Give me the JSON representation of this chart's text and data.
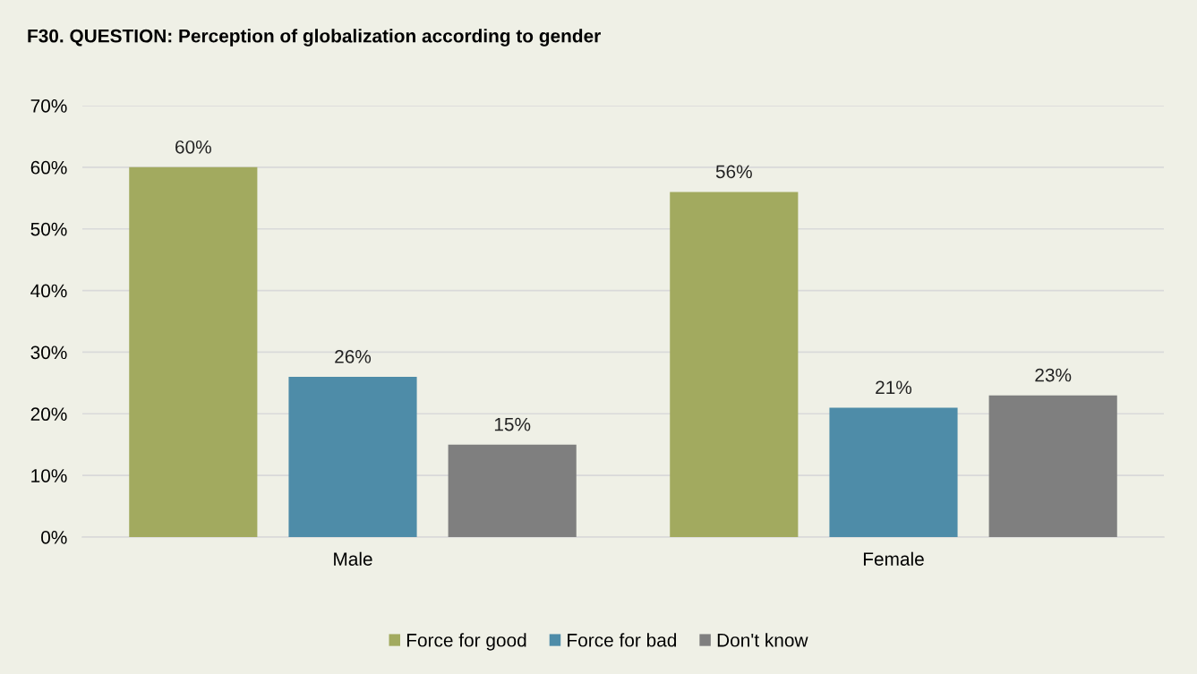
{
  "chart_data": {
    "type": "bar",
    "title": "F30. QUESTION: Perception of globalization according to gender",
    "categories": [
      "Male",
      "Female"
    ],
    "series": [
      {
        "name": "Force for good",
        "color": "#a2aa5f",
        "values": [
          60,
          56
        ],
        "value_labels": [
          "60%",
          "56%"
        ]
      },
      {
        "name": "Force for bad",
        "color": "#4e8ca8",
        "values": [
          26,
          21
        ],
        "value_labels": [
          "26%",
          "21%"
        ]
      },
      {
        "name": "Don't know",
        "color": "#7f7f7f",
        "values": [
          15,
          23
        ],
        "value_labels": [
          "15%",
          "23%"
        ]
      }
    ],
    "ylim": [
      0,
      70
    ],
    "yticks": [
      {
        "value": 0,
        "label": "0%"
      },
      {
        "value": 10,
        "label": "10%"
      },
      {
        "value": 20,
        "label": "20%"
      },
      {
        "value": 30,
        "label": "30%"
      },
      {
        "value": 40,
        "label": "40%"
      },
      {
        "value": 50,
        "label": "50%"
      },
      {
        "value": 60,
        "label": "60%"
      },
      {
        "value": 70,
        "label": "70%"
      }
    ],
    "grid": "y",
    "legend": "bottom"
  }
}
